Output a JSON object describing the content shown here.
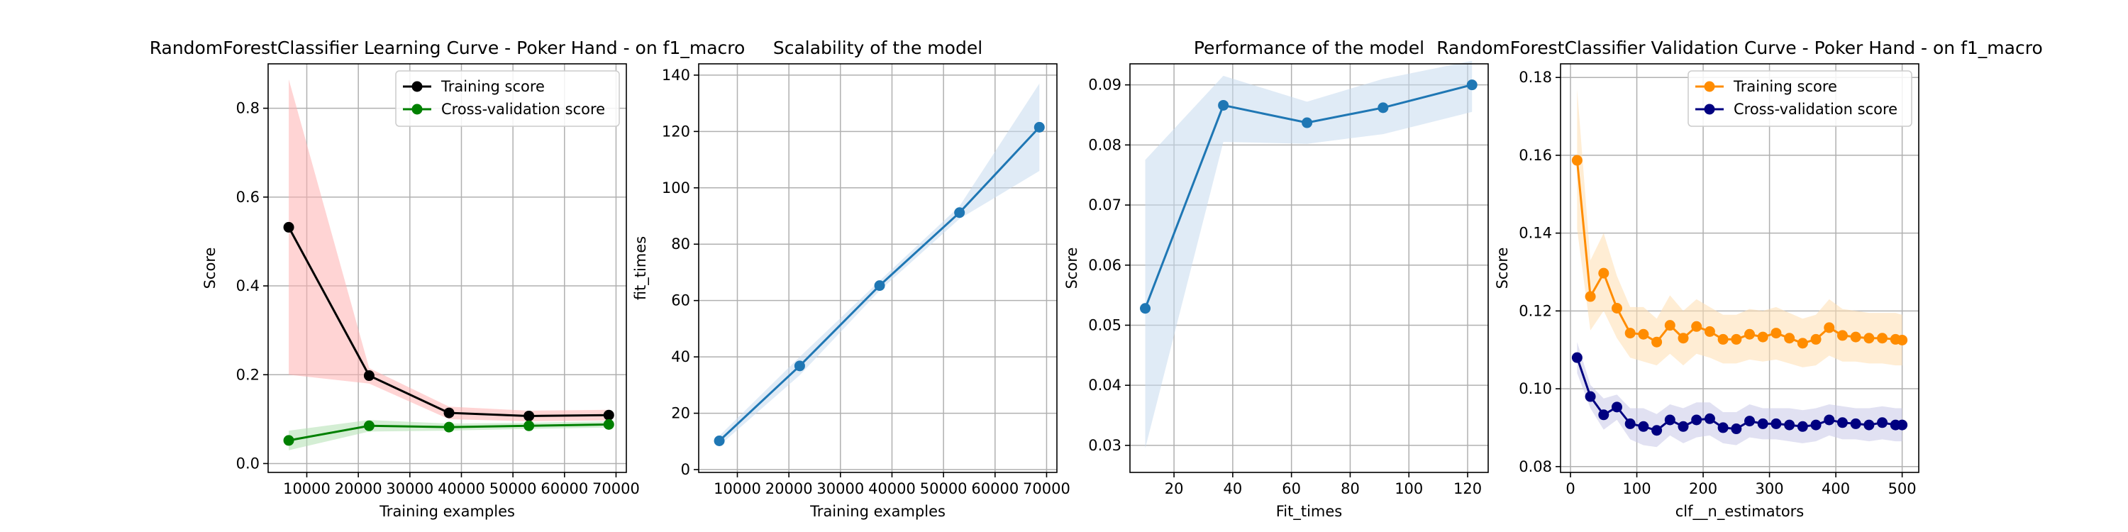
{
  "chart_data": [
    {
      "type": "line",
      "title": "RandomForestClassifier Learning Curve - Poker Hand - on f1_macro",
      "xlabel": "Training examples",
      "ylabel": "Score",
      "xlim": [
        2500,
        72000
      ],
      "ylim": [
        -0.02,
        0.9
      ],
      "xticks": [
        10000,
        20000,
        30000,
        40000,
        50000,
        60000,
        70000
      ],
      "yticks": [
        0.0,
        0.2,
        0.4,
        0.6,
        0.8
      ],
      "ytick_format": "1",
      "grid": true,
      "legend": "top-right",
      "series": [
        {
          "name": "Training score",
          "color": "#000000",
          "x": [
            6500,
            22100,
            37600,
            53100,
            68600
          ],
          "y": [
            0.532,
            0.198,
            0.114,
            0.107,
            0.109
          ],
          "band_lower": [
            0.2,
            0.18,
            0.1,
            0.095,
            0.097
          ],
          "band_upper": [
            0.865,
            0.215,
            0.128,
            0.119,
            0.121
          ],
          "band_color": "#ffb0b0"
        },
        {
          "name": "Cross-validation score",
          "color": "#008000",
          "x": [
            6500,
            22100,
            37600,
            53100,
            68600
          ],
          "y": [
            0.052,
            0.085,
            0.082,
            0.085,
            0.088
          ],
          "band_lower": [
            0.03,
            0.072,
            0.074,
            0.078,
            0.081
          ],
          "band_upper": [
            0.074,
            0.098,
            0.09,
            0.092,
            0.095
          ],
          "band_color": "#b0e0b0"
        }
      ]
    },
    {
      "type": "line",
      "title": "Scalability of the model",
      "xlabel": "Training examples",
      "ylabel": "fit_times",
      "xlim": [
        2500,
        72000
      ],
      "ylim": [
        -1,
        144
      ],
      "xticks": [
        10000,
        20000,
        30000,
        40000,
        50000,
        60000,
        70000
      ],
      "yticks": [
        0,
        20,
        40,
        60,
        80,
        100,
        120,
        140
      ],
      "ytick_format": "0",
      "grid": true,
      "legend": "none",
      "series": [
        {
          "name": "",
          "color": "#1f77b4",
          "x": [
            6500,
            22100,
            37600,
            53100,
            68600
          ],
          "y": [
            10.2,
            36.8,
            65.3,
            91.2,
            121.5
          ],
          "band_lower": [
            8.5,
            33.5,
            63.5,
            89.0,
            106.0
          ],
          "band_upper": [
            12.0,
            40.0,
            67.0,
            93.5,
            137.0
          ],
          "band_color": "#c6dbef"
        }
      ]
    },
    {
      "type": "line",
      "title": "Performance of the model",
      "xlabel": "Fit_times",
      "ylabel": "Score",
      "xlim": [
        5,
        127
      ],
      "ylim": [
        0.0255,
        0.0935
      ],
      "xticks": [
        20,
        40,
        60,
        80,
        100,
        120
      ],
      "yticks": [
        0.03,
        0.04,
        0.05,
        0.06,
        0.07,
        0.08,
        0.09
      ],
      "ytick_format": "2",
      "grid": true,
      "legend": "none",
      "series": [
        {
          "name": "",
          "color": "#1f77b4",
          "x": [
            10.2,
            36.8,
            65.3,
            91.2,
            121.5
          ],
          "y": [
            0.0528,
            0.0866,
            0.0837,
            0.0862,
            0.09
          ],
          "band_lower": [
            0.0295,
            0.0805,
            0.0802,
            0.0818,
            0.0855
          ],
          "band_upper": [
            0.0775,
            0.0915,
            0.0872,
            0.091,
            0.094
          ],
          "band_color": "#c6dbef"
        }
      ]
    },
    {
      "type": "line",
      "title": "RandomForestClassifier Validation Curve - Poker Hand - on f1_macro",
      "xlabel": "clf__n_estimators",
      "ylabel": "Score",
      "xlim": [
        -15,
        525
      ],
      "ylim": [
        0.0785,
        0.1835
      ],
      "xticks": [
        0,
        100,
        200,
        300,
        400,
        500
      ],
      "yticks": [
        0.08,
        0.1,
        0.12,
        0.14,
        0.16,
        0.18
      ],
      "ytick_format": "2",
      "grid": true,
      "legend": "top-right",
      "series": [
        {
          "name": "Training score",
          "color": "#ff8c00",
          "x": [
            10,
            30,
            50,
            70,
            90,
            110,
            130,
            150,
            170,
            190,
            210,
            230,
            250,
            270,
            290,
            310,
            330,
            350,
            370,
            390,
            410,
            430,
            450,
            470,
            490,
            500
          ],
          "y": [
            0.1587,
            0.1237,
            0.1297,
            0.1207,
            0.1143,
            0.114,
            0.112,
            0.1163,
            0.113,
            0.116,
            0.1147,
            0.1127,
            0.1127,
            0.114,
            0.1133,
            0.1143,
            0.113,
            0.1117,
            0.1127,
            0.1157,
            0.1137,
            0.1133,
            0.113,
            0.113,
            0.1127,
            0.1125
          ],
          "band_lower": [
            0.141,
            0.115,
            0.12,
            0.113,
            0.108,
            0.107,
            0.106,
            0.109,
            0.106,
            0.109,
            0.108,
            0.1065,
            0.1065,
            0.1075,
            0.107,
            0.1075,
            0.1065,
            0.1055,
            0.106,
            0.1085,
            0.107,
            0.107,
            0.1065,
            0.1065,
            0.106,
            0.106
          ],
          "band_upper": [
            0.177,
            0.133,
            0.14,
            0.129,
            0.121,
            0.121,
            0.118,
            0.124,
            0.12,
            0.123,
            0.121,
            0.119,
            0.119,
            0.1205,
            0.12,
            0.121,
            0.1195,
            0.118,
            0.119,
            0.123,
            0.1205,
            0.12,
            0.1195,
            0.1195,
            0.1195,
            0.119
          ],
          "band_color": "#ffdfb0"
        },
        {
          "name": "Cross-validation score",
          "color": "#000080",
          "x": [
            10,
            30,
            50,
            70,
            90,
            110,
            130,
            150,
            170,
            190,
            210,
            230,
            250,
            270,
            290,
            310,
            330,
            350,
            370,
            390,
            410,
            430,
            450,
            470,
            490,
            500
          ],
          "y": [
            0.108,
            0.098,
            0.0933,
            0.0953,
            0.091,
            0.0903,
            0.0893,
            0.092,
            0.0903,
            0.092,
            0.0923,
            0.09,
            0.0897,
            0.0917,
            0.091,
            0.091,
            0.0907,
            0.0903,
            0.0907,
            0.092,
            0.0913,
            0.091,
            0.0907,
            0.0913,
            0.0907,
            0.0907
          ],
          "band_lower": [
            0.104,
            0.095,
            0.0895,
            0.092,
            0.087,
            0.0855,
            0.085,
            0.088,
            0.086,
            0.0875,
            0.088,
            0.086,
            0.0855,
            0.0875,
            0.087,
            0.087,
            0.0865,
            0.086,
            0.0865,
            0.088,
            0.087,
            0.087,
            0.0865,
            0.087,
            0.0865,
            0.0865
          ],
          "band_upper": [
            0.112,
            0.101,
            0.0975,
            0.0985,
            0.095,
            0.095,
            0.0935,
            0.096,
            0.095,
            0.0965,
            0.0965,
            0.094,
            0.094,
            0.096,
            0.095,
            0.095,
            0.095,
            0.0945,
            0.095,
            0.096,
            0.0955,
            0.095,
            0.095,
            0.0955,
            0.095,
            0.095
          ],
          "band_color": "#c8c8e8"
        }
      ]
    }
  ]
}
